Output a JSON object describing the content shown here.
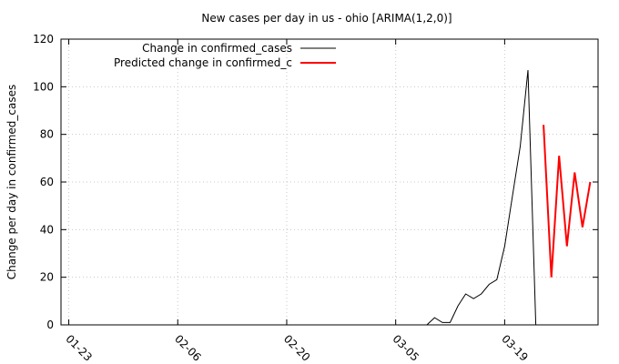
{
  "chart_data": {
    "type": "line",
    "title": "New cases per day in us - ohio [ARIMA(1,2,0)]",
    "xlabel": "",
    "ylabel": "Change per day in confirmed_cases",
    "ylim": [
      0,
      120
    ],
    "yticks": [
      "0",
      "20",
      "40",
      "60",
      "80",
      "100",
      "120"
    ],
    "xlim": [
      "01-22",
      "03-31"
    ],
    "xtick_labels": [
      "01-23",
      "02-06",
      "02-20",
      "03-05",
      "03-19"
    ],
    "xtick_dates": [
      "01-23",
      "02-06",
      "02-20",
      "03-05",
      "03-19"
    ],
    "grid": true,
    "legend_position": "top-left",
    "series": [
      {
        "name": "Change in confirmed_cases",
        "color": "#000000",
        "x": [
          "03-09",
          "03-10",
          "03-11",
          "03-12",
          "03-13",
          "03-14",
          "03-15",
          "03-16",
          "03-17",
          "03-18",
          "03-19",
          "03-20",
          "03-21",
          "03-22",
          "03-23",
          "03-24"
        ],
        "y": [
          0,
          3,
          1,
          1,
          8,
          13,
          11,
          13,
          17,
          19,
          33,
          54,
          75,
          107,
          0,
          0
        ]
      },
      {
        "name": "Predicted change in confirmed_c",
        "color": "#ff0000",
        "x": [
          "03-24",
          "03-25",
          "03-26",
          "03-27",
          "03-28",
          "03-29",
          "03-30"
        ],
        "y": [
          84,
          20,
          71,
          33,
          64,
          41,
          60
        ]
      }
    ]
  }
}
